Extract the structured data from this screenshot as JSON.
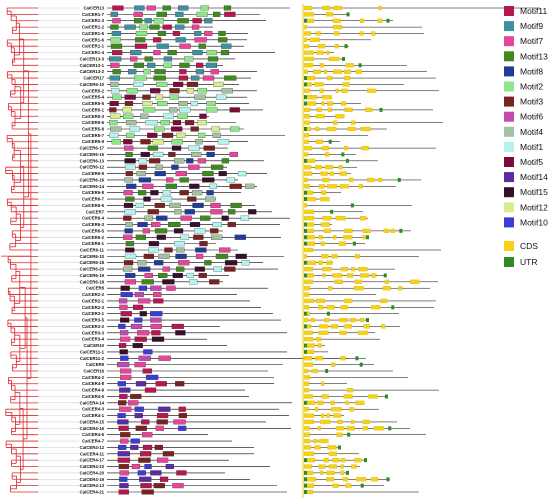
{
  "genes": [
    "CaICER13",
    "CaICER1-7",
    "CaICER1-3",
    "CaICER1-2",
    "CaICER1-5",
    "CaICER1-6",
    "CaICER1-1",
    "CaICER1-4",
    "CaICER13-3",
    "CaICER13-1",
    "CaICER13-2",
    "CaICER17",
    "CaICER5-10",
    "CaICER5-2",
    "CaICER5-4",
    "CaICER5-5",
    "CaICER5-1",
    "CaICER5-3",
    "CaICER5-6",
    "CaICER5-8",
    "CaICER5-7",
    "CaICER5-9",
    "CaICER6-17",
    "CaICER6-15",
    "CaICER6-13",
    "CaICER6-12",
    "CaICER6-9",
    "CaICER6-16",
    "CaICER6-14",
    "CaICER6-8",
    "CaICER6-7",
    "CaICER6-6",
    "CaICER7",
    "CaICER6-4",
    "CaICER6-3",
    "CaICER6-5",
    "CaICER6-2",
    "CaICER6-1",
    "CaICER6-11",
    "CaICER6-10",
    "CaICER6-18",
    "CaICER6-20",
    "CaICER6-19",
    "CaICER6-18",
    "CaICER8",
    "CaICER2-2",
    "CaICER2-1",
    "CaICER2-3",
    "CaICER3-1",
    "CaICER3-5",
    "CaICER3-2",
    "CaICER3-3",
    "CaICER3-4",
    "CaICER10",
    "CaICER11-1",
    "CaICER11-2",
    "CaICER9",
    "CaICER16",
    "CaICER4-2",
    "CaICER4-8",
    "CaICER4-9",
    "CaICER4-5",
    "CaICER4-14",
    "CaICER4-3",
    "CaICER4-1",
    "CaICER4-15",
    "CaICER4-16",
    "CaICER4-6",
    "CaICER4-7",
    "CaICER4-12",
    "CaICER4-11",
    "CaICER4-17",
    "CaICER4-10",
    "CaICER4-20",
    "CaICER4-19",
    "CaICER4-13",
    "CaICER4-21"
  ],
  "legend": {
    "motifs": [
      {
        "name": "Motif11",
        "color": "#b5174e"
      },
      {
        "name": "Motif9",
        "color": "#3e8fa0"
      },
      {
        "name": "Motif7",
        "color": "#e8449a"
      },
      {
        "name": "Motif13",
        "color": "#3f8a1f"
      },
      {
        "name": "Motif8",
        "color": "#1f3d99"
      },
      {
        "name": "Motif2",
        "color": "#8ee88a"
      },
      {
        "name": "Motif3",
        "color": "#7a2222"
      },
      {
        "name": "Motif6",
        "color": "#c04bb0"
      },
      {
        "name": "Motif4",
        "color": "#a3c29f"
      },
      {
        "name": "Motif1",
        "color": "#b4f4ee"
      },
      {
        "name": "Motif5",
        "color": "#7b0b3b"
      },
      {
        "name": "Motif14",
        "color": "#5b2aa6"
      },
      {
        "name": "Motif15",
        "color": "#3a0f2c"
      },
      {
        "name": "Motif12",
        "color": "#d6ee8e"
      },
      {
        "name": "Motif10",
        "color": "#3b3bd6"
      }
    ],
    "features": [
      {
        "name": "CDS",
        "color": "#f7d117"
      },
      {
        "name": "UTR",
        "color": "#2f8a24"
      }
    ]
  },
  "colors": {
    "tree_branch": "#d8262e",
    "gene_line": "#000000",
    "separator": "#f0c419"
  }
}
